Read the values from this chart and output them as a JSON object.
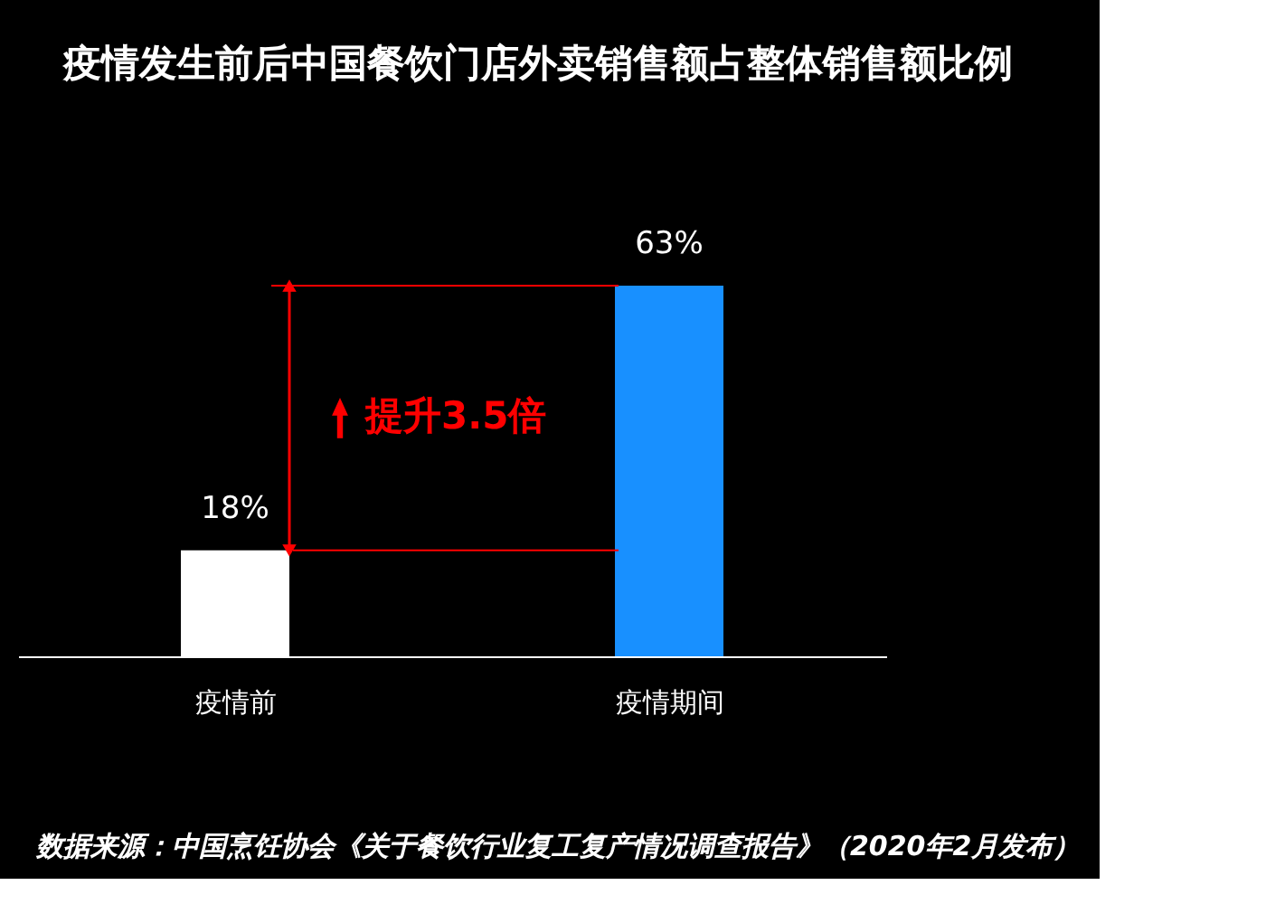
{
  "chart_data": {
    "type": "bar",
    "title": "疫情发生前后中国餐饮门店外卖销售额占整体销售额比例",
    "categories": [
      "疫情前",
      "疫情期间"
    ],
    "values": [
      18,
      63
    ],
    "colors": [
      "#ffffff",
      "#1890ff"
    ],
    "value_labels": [
      "18%",
      "63%"
    ],
    "ref_lines": [
      {
        "axis": "y",
        "value": 63,
        "label": null,
        "color": "#ff0000"
      },
      {
        "axis": "y",
        "value": 18,
        "label": null,
        "color": "#ff0000"
      }
    ],
    "annotations": [
      "提升3.5倍",
      "数据来源：中国烹饪协会《关于餐饮行业复工复产情况调查报告》（2020年2月发布）"
    ],
    "grid": false,
    "tick_labels": "x"
  }
}
